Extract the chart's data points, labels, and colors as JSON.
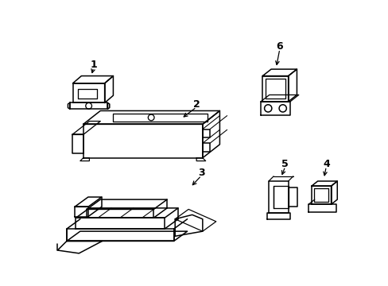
{
  "background_color": "#ffffff",
  "line_color": "#000000",
  "line_width": 1.1
}
